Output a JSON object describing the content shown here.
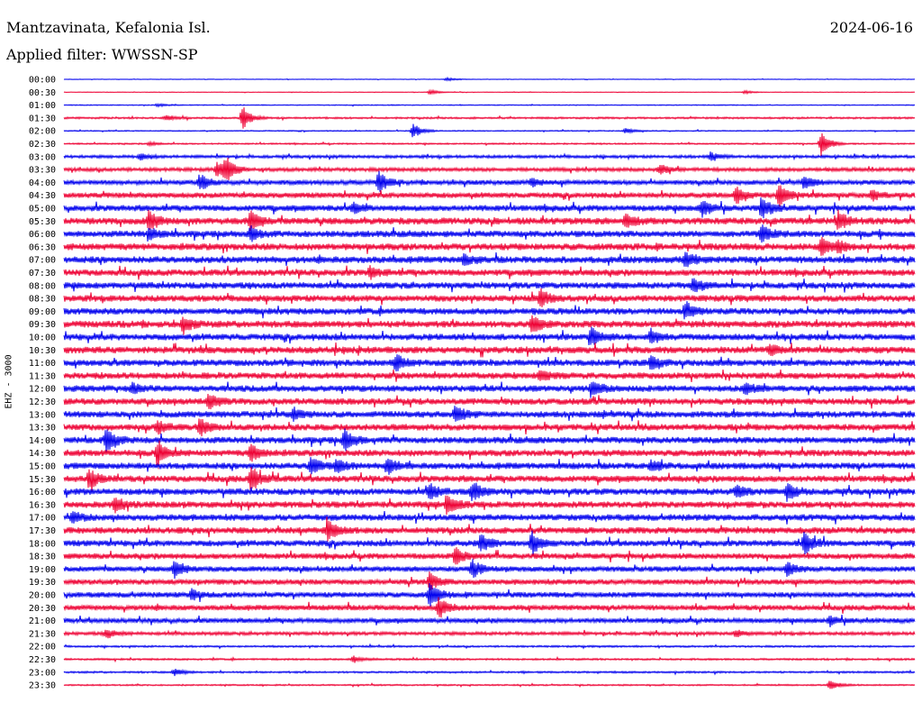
{
  "header": {
    "station": "Mantzavinata, Kefalonia Isl.",
    "filter": "Applied filter: WWSSN-SP",
    "date": "2024-06-16"
  },
  "chart_data": {
    "type": "line",
    "title": "Mantzavinata, Kefalonia Isl.",
    "ylabel": "EHZ - 3000",
    "rows": [
      "00:00",
      "00:30",
      "01:00",
      "01:30",
      "02:00",
      "02:30",
      "03:00",
      "03:30",
      "04:00",
      "04:30",
      "05:00",
      "05:30",
      "06:00",
      "06:30",
      "07:00",
      "07:30",
      "08:00",
      "08:30",
      "09:00",
      "09:30",
      "10:00",
      "10:30",
      "11:00",
      "11:30",
      "12:00",
      "12:30",
      "13:00",
      "13:30",
      "14:00",
      "14:30",
      "15:00",
      "15:30",
      "16:00",
      "16:30",
      "17:00",
      "17:30",
      "18:00",
      "18:30",
      "19:00",
      "19:30",
      "20:00",
      "20:30",
      "21:00",
      "21:30",
      "22:00",
      "22:30",
      "23:00",
      "23:30"
    ],
    "colors": [
      "#0000ee",
      "#ee0033"
    ],
    "noise_level": [
      0.3,
      0.3,
      0.5,
      1.0,
      0.6,
      0.8,
      1.6,
      2.0,
      2.6,
      3.0,
      3.4,
      3.8,
      3.6,
      3.8,
      3.8,
      3.6,
      3.6,
      3.6,
      3.6,
      3.8,
      3.6,
      3.8,
      3.6,
      3.6,
      3.6,
      3.6,
      3.6,
      3.6,
      3.6,
      3.6,
      3.6,
      3.6,
      3.6,
      3.6,
      3.6,
      3.6,
      3.4,
      3.2,
      3.0,
      3.0,
      3.0,
      3.0,
      2.6,
      1.8,
      1.0,
      1.0,
      1.0,
      0.8
    ],
    "events": [
      [
        [
          0.45,
          2
        ]
      ],
      [
        [
          0.43,
          3
        ],
        [
          0.8,
          2
        ]
      ],
      [
        [
          0.11,
          2
        ]
      ],
      [
        [
          0.21,
          14
        ],
        [
          0.12,
          3
        ]
      ],
      [
        [
          0.41,
          9
        ],
        [
          0.66,
          3
        ]
      ],
      [
        [
          0.89,
          14
        ],
        [
          0.1,
          2
        ]
      ],
      [
        [
          0.76,
          5
        ],
        [
          0.09,
          4
        ]
      ],
      [
        [
          0.19,
          14
        ],
        [
          0.18,
          8
        ],
        [
          0.7,
          6
        ]
      ],
      [
        [
          0.16,
          10
        ],
        [
          0.37,
          12
        ],
        [
          0.87,
          8
        ],
        [
          0.55,
          5
        ]
      ],
      [
        [
          0.79,
          10
        ],
        [
          0.84,
          14
        ],
        [
          0.95,
          5
        ]
      ],
      [
        [
          0.75,
          10
        ],
        [
          0.82,
          12
        ],
        [
          0.34,
          5
        ]
      ],
      [
        [
          0.1,
          12
        ],
        [
          0.22,
          12
        ],
        [
          0.66,
          8
        ],
        [
          0.91,
          10
        ]
      ],
      [
        [
          0.22,
          8
        ],
        [
          0.82,
          10
        ],
        [
          0.1,
          6
        ]
      ],
      [
        [
          0.89,
          10
        ],
        [
          0.91,
          6
        ]
      ],
      [
        [
          0.73,
          8
        ],
        [
          0.47,
          6
        ]
      ],
      [
        [
          0.36,
          6
        ]
      ],
      [
        [
          0.74,
          8
        ]
      ],
      [
        [
          0.56,
          10
        ]
      ],
      [
        [
          0.73,
          10
        ]
      ],
      [
        [
          0.14,
          8
        ],
        [
          0.55,
          10
        ]
      ],
      [
        [
          0.62,
          10
        ],
        [
          0.69,
          8
        ]
      ],
      [
        [
          0.83,
          6
        ]
      ],
      [
        [
          0.39,
          10
        ],
        [
          0.69,
          8
        ]
      ],
      [
        [
          0.56,
          6
        ]
      ],
      [
        [
          0.08,
          6
        ],
        [
          0.62,
          10
        ],
        [
          0.8,
          6
        ]
      ],
      [
        [
          0.17,
          8
        ]
      ],
      [
        [
          0.46,
          10
        ],
        [
          0.27,
          6
        ]
      ],
      [
        [
          0.16,
          10
        ],
        [
          0.11,
          8
        ]
      ],
      [
        [
          0.05,
          14
        ],
        [
          0.33,
          12
        ]
      ],
      [
        [
          0.11,
          14
        ],
        [
          0.22,
          10
        ]
      ],
      [
        [
          0.29,
          10
        ],
        [
          0.32,
          8
        ],
        [
          0.38,
          10
        ],
        [
          0.69,
          6
        ]
      ],
      [
        [
          0.03,
          12
        ],
        [
          0.22,
          14
        ]
      ],
      [
        [
          0.43,
          10
        ],
        [
          0.48,
          12
        ],
        [
          0.79,
          8
        ],
        [
          0.85,
          10
        ]
      ],
      [
        [
          0.45,
          12
        ],
        [
          0.06,
          8
        ]
      ],
      [
        [
          0.01,
          6
        ]
      ],
      [
        [
          0.31,
          12
        ]
      ],
      [
        [
          0.49,
          10
        ],
        [
          0.55,
          12
        ],
        [
          0.87,
          12
        ]
      ],
      [
        [
          0.46,
          10
        ]
      ],
      [
        [
          0.13,
          10
        ],
        [
          0.48,
          10
        ],
        [
          0.85,
          8
        ]
      ],
      [
        [
          0.43,
          10
        ]
      ],
      [
        [
          0.43,
          14
        ],
        [
          0.15,
          6
        ]
      ],
      [
        [
          0.44,
          12
        ]
      ],
      [
        [
          0.9,
          6
        ]
      ],
      [
        [
          0.05,
          6
        ],
        [
          0.79,
          4
        ]
      ],
      [],
      [
        [
          0.34,
          4
        ]
      ],
      [
        [
          0.13,
          4
        ]
      ],
      [
        [
          0.9,
          6
        ]
      ]
    ]
  }
}
